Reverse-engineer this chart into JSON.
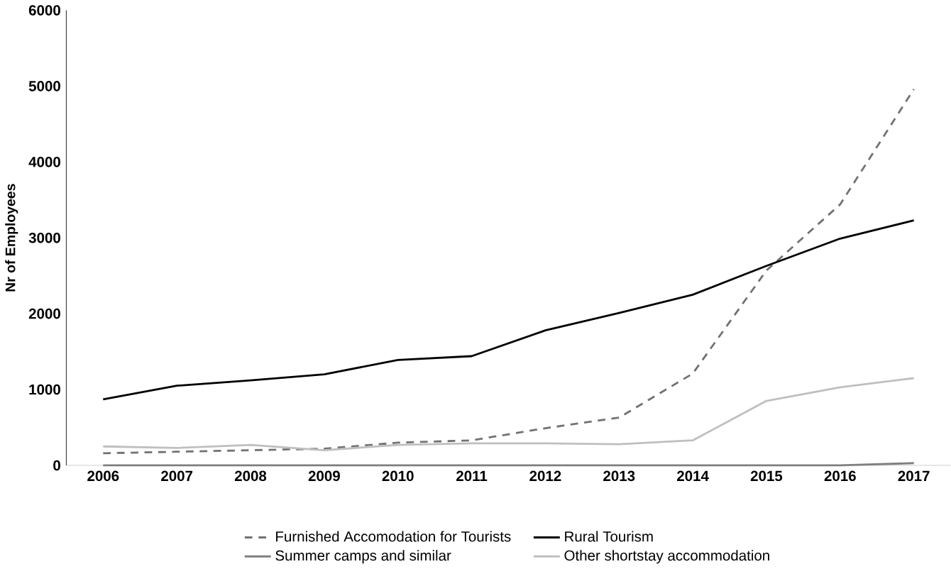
{
  "chart_data": {
    "type": "line",
    "ylabel": "Nr of Employees",
    "categories": [
      "2006",
      "2007",
      "2008",
      "2009",
      "2010",
      "2011",
      "2012",
      "2013",
      "2014",
      "2015",
      "2016",
      "2017"
    ],
    "ylim": [
      0,
      6000
    ],
    "yticks": [
      0,
      1000,
      2000,
      3000,
      4000,
      5000,
      6000
    ],
    "grid": false,
    "legend": "bottom",
    "marker": "none",
    "series": [
      {
        "name": "Furnished Accomodation for Tourists",
        "color": "#767171",
        "line_style": "dashed",
        "values": [
          160,
          180,
          200,
          220,
          300,
          330,
          490,
          630,
          1210,
          2570,
          3440,
          4960
        ]
      },
      {
        "name": "Rural Tourism",
        "color": "#000000",
        "line_style": "solid",
        "values": [
          870,
          1050,
          1120,
          1200,
          1390,
          1440,
          1780,
          2010,
          2250,
          2630,
          2990,
          3230
        ]
      },
      {
        "name": "Summer camps and similar",
        "color": "#7f7f7f",
        "line_style": "solid",
        "values": [
          0,
          0,
          0,
          0,
          0,
          0,
          0,
          0,
          0,
          0,
          0,
          30
        ]
      },
      {
        "name": "Other shortstay accommodation",
        "color": "#bfbfbf",
        "line_style": "solid",
        "values": [
          250,
          230,
          270,
          200,
          270,
          290,
          290,
          280,
          330,
          850,
          1030,
          1150
        ]
      }
    ]
  }
}
